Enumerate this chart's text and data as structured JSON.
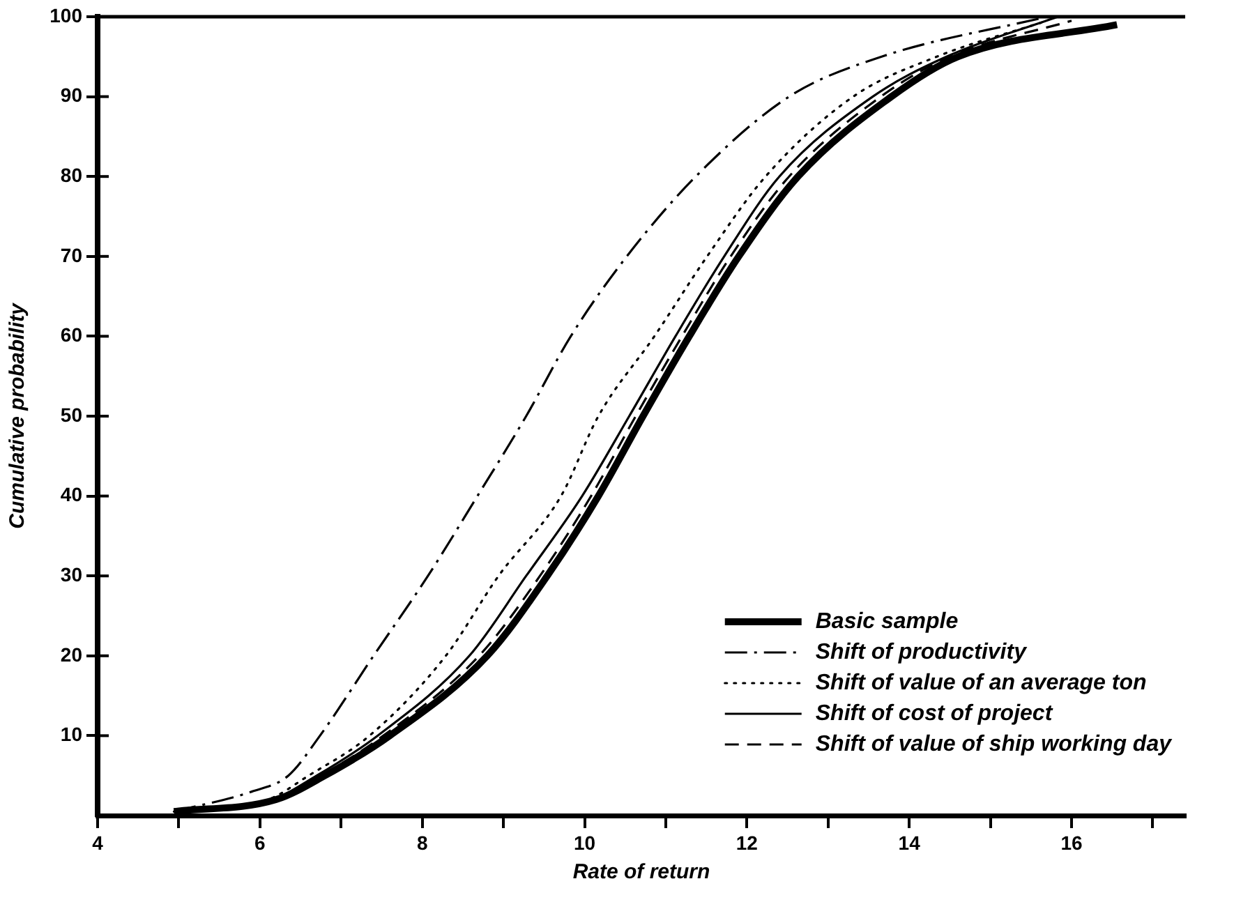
{
  "chart_data": {
    "type": "line",
    "xlabel": "Rate of return",
    "ylabel": "Cumulative probability",
    "xlim": [
      4,
      17.4
    ],
    "xticks": [
      4,
      {
        "value": 5,
        "label": null
      },
      6,
      {
        "value": 7,
        "label": null
      },
      8,
      {
        "value": 9,
        "label": null
      },
      10,
      {
        "value": 11,
        "label": null
      },
      12,
      {
        "value": 13,
        "label": null
      },
      14,
      {
        "value": 15,
        "label": null
      },
      16,
      {
        "value": 17,
        "label": null
      }
    ],
    "ylim": [
      0,
      100
    ],
    "yticks": [
      10,
      20,
      30,
      40,
      50,
      60,
      70,
      80,
      90,
      100
    ],
    "grid": false,
    "legend": "bottom right",
    "marker": "none",
    "series": [
      {
        "name": "Basic sample",
        "color": "#000000",
        "line_style": "solid",
        "x": [
          4.94,
          6.2,
          6.8,
          7.6,
          8.8,
          9.54,
          10.17,
          10.72,
          11.29,
          11.9,
          12.63,
          13.78,
          14.6,
          16.56
        ],
        "values": [
          0.5,
          2,
          5,
          10,
          20,
          30,
          40,
          50,
          60,
          70,
          80,
          90,
          95,
          99
        ]
      },
      {
        "name": "Shift of productivity",
        "color": "#000000",
        "line_style": "dashdot",
        "x": [
          4.94,
          5.9,
          6.35,
          6.74,
          7.4,
          8.07,
          8.68,
          9.28,
          9.83,
          10.52,
          11.37,
          12.52,
          13.66,
          15.7
        ],
        "values": [
          0.5,
          3,
          5,
          10,
          20,
          30,
          40,
          50,
          60,
          70,
          80,
          90,
          95,
          100
        ]
      },
      {
        "name": "Shift of value of an average ton",
        "color": "#000000",
        "line_style": "dotted",
        "x": [
          4.94,
          6.1,
          6.6,
          7.35,
          8.29,
          8.94,
          9.71,
          10.17,
          10.86,
          11.51,
          12.23,
          13.31,
          14.34,
          15.7
        ],
        "values": [
          0.5,
          2,
          5,
          10,
          20,
          30,
          40,
          50,
          60,
          70,
          80,
          90,
          95,
          99.5
        ]
      },
      {
        "name": "Shift of cost of project",
        "color": "#000000",
        "line_style": "solid",
        "x": [
          4.94,
          6.15,
          6.7,
          7.45,
          8.58,
          9.28,
          9.97,
          10.55,
          11.12,
          11.72,
          12.4,
          13.55,
          14.46,
          15.83
        ],
        "values": [
          0.5,
          2,
          5,
          10,
          20,
          30,
          40,
          50,
          60,
          70,
          80,
          90,
          95,
          100
        ]
      },
      {
        "name": "Shift of value of ship working day",
        "color": "#000000",
        "line_style": "dashed",
        "x": [
          4.94,
          6.15,
          6.75,
          7.52,
          8.7,
          9.45,
          10.08,
          10.63,
          11.2,
          11.8,
          12.52,
          13.65,
          14.5,
          16.0
        ],
        "values": [
          0.5,
          2,
          5,
          10,
          20,
          30,
          40,
          50,
          60,
          70,
          80,
          90,
          95,
          99.5
        ]
      }
    ]
  }
}
